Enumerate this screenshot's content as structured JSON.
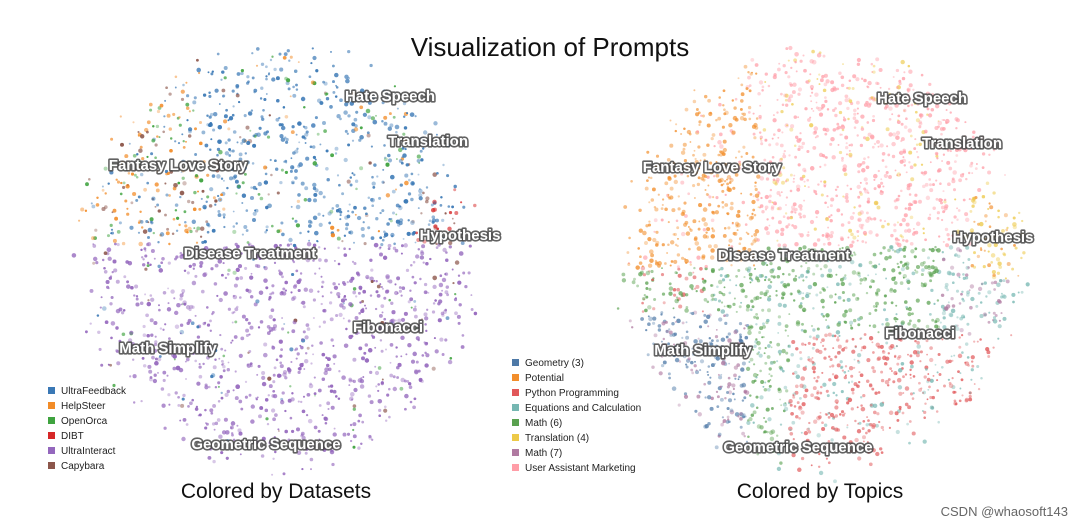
{
  "figure": {
    "title": "Visualization of Prompts",
    "watermark": "CSDN @whaosoft143"
  },
  "chart_data": [
    {
      "type": "scatter",
      "subtitle": "Colored by Datasets",
      "cluster_labels": [
        "Hate Speech",
        "Translation",
        "Fantasy Love Story",
        "Hypothesis",
        "Disease Treatment",
        "Math Simplify",
        "Fibonacci",
        "Geometric Sequence"
      ],
      "legend_position": "bottom-left",
      "legend": [
        {
          "name": "UltraFeedback",
          "color": "#3a78b5"
        },
        {
          "name": "HelpSteer",
          "color": "#f28c28"
        },
        {
          "name": "OpenOrca",
          "color": "#3fa33f"
        },
        {
          "name": "DIBT",
          "color": "#d62728"
        },
        {
          "name": "UltraInteract",
          "color": "#9467bd"
        },
        {
          "name": "Capybara",
          "color": "#8c564b"
        }
      ]
    },
    {
      "type": "scatter",
      "subtitle": "Colored by Topics",
      "cluster_labels": [
        "Hate Speech",
        "Translation",
        "Fantasy Love Story",
        "Hypothesis",
        "Disease Treatment",
        "Math Simplify",
        "Fibonacci",
        "Geometric Sequence"
      ],
      "legend_position": "bottom-left",
      "legend": [
        {
          "name": "Geometry (3)",
          "color": "#4e79a7"
        },
        {
          "name": "Potential",
          "color": "#f28e2b"
        },
        {
          "name": "Python Programming",
          "color": "#e15759"
        },
        {
          "name": "Equations and Calculation",
          "color": "#76b7b2"
        },
        {
          "name": "Math (6)",
          "color": "#59a14f"
        },
        {
          "name": "Translation (4)",
          "color": "#edc948"
        },
        {
          "name": "Math (7)",
          "color": "#b07aa1"
        },
        {
          "name": "User Assistant Marketing",
          "color": "#ff9da7"
        }
      ]
    }
  ]
}
